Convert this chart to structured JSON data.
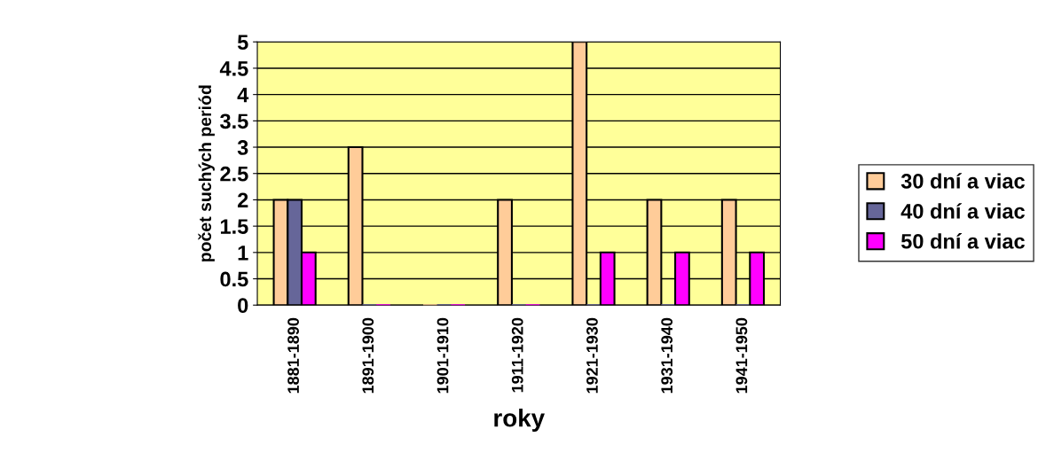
{
  "chart_data": {
    "type": "bar",
    "xlabel": "roky",
    "ylabel": "počet suchých periód",
    "categories": [
      "1881-1890",
      "1891-1900",
      "1901-1910",
      "1911-1920",
      "1921-1930",
      "1931-1940",
      "1941-1950"
    ],
    "series": [
      {
        "name": "30 dní a viac",
        "color": "#ffcc99",
        "values": [
          2,
          3,
          0,
          2,
          5,
          2,
          2
        ]
      },
      {
        "name": "40 dní a viac",
        "color": "#666699",
        "values": [
          2,
          0,
          0,
          0,
          0,
          0,
          0
        ]
      },
      {
        "name": "50 dní a viac",
        "color": "#ff00ff",
        "values": [
          1,
          0,
          0,
          0,
          1,
          1,
          1
        ]
      }
    ],
    "ylim": [
      0,
      5
    ],
    "yticks": [
      0,
      0.5,
      1,
      1.5,
      2,
      2.5,
      3,
      3.5,
      4,
      4.5,
      5
    ],
    "grid": "y",
    "legend": "right"
  }
}
